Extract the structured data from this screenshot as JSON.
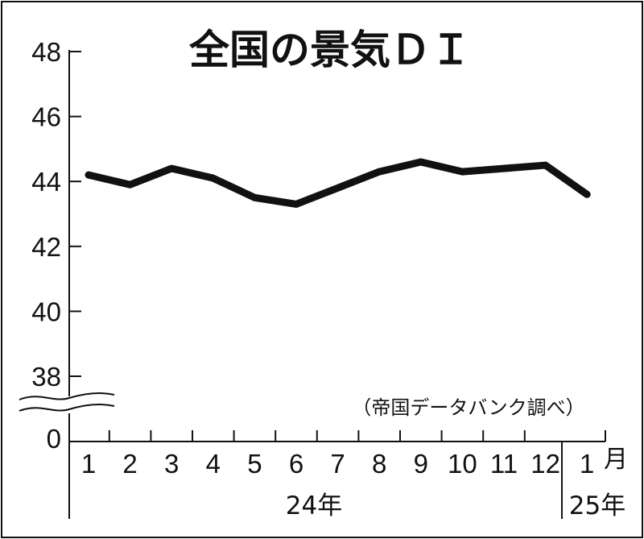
{
  "chart_data": {
    "type": "line",
    "title": "全国の景気ＤＩ",
    "source": "（帝国データバンク調べ）",
    "y_ticks": [
      "48",
      "46",
      "44",
      "42",
      "40",
      "38",
      "0"
    ],
    "y_tick_values": [
      48,
      46,
      44,
      42,
      40,
      38
    ],
    "ylim": [
      38,
      48
    ],
    "y_axis_break": true,
    "x_tick_labels": [
      "1",
      "2",
      "3",
      "4",
      "5",
      "6",
      "7",
      "8",
      "9",
      "10",
      "11",
      "12",
      "1"
    ],
    "x_unit": "月",
    "year_labels": [
      "24年",
      "25年"
    ],
    "series": [
      {
        "values": [
          44.2,
          43.9,
          44.4,
          44.1,
          43.5,
          43.3,
          43.8,
          44.3,
          44.6,
          44.3,
          44.4,
          44.5,
          43.6
        ]
      }
    ],
    "grid": false,
    "line_color": "#111111"
  }
}
